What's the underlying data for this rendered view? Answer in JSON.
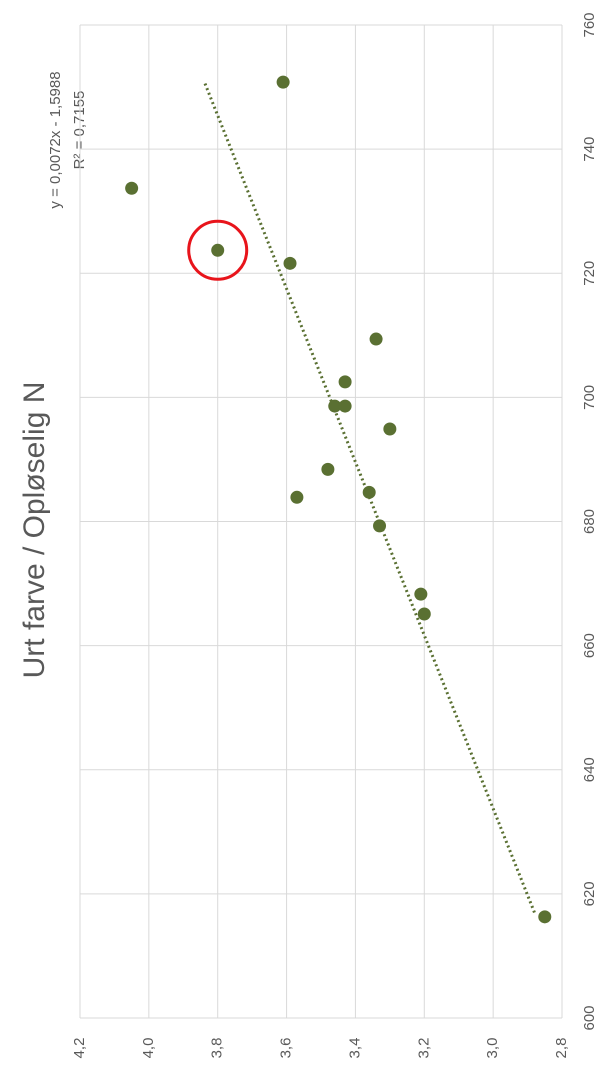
{
  "chart_data": {
    "type": "scatter",
    "title": "Urt farve / Opløselig N",
    "series": [
      {
        "name": "Urt farve / Opløselig N",
        "color": "#5a7032",
        "x": [
          750.8,
          733.7,
          723.7,
          721.6,
          709.4,
          702.5,
          698.6,
          698.6,
          694.9,
          688.4,
          683.9,
          684.7,
          679.3,
          668.3,
          665.1,
          616.3
        ],
        "values": [
          3.61,
          4.05,
          3.8,
          3.59,
          3.34,
          3.43,
          3.46,
          3.43,
          3.3,
          3.48,
          3.57,
          3.36,
          3.33,
          3.21,
          3.2,
          2.85
        ]
      }
    ],
    "trendline": {
      "equation": "y = 0,0072x - 1,5988",
      "r_squared": "R² = 0,7155",
      "x": [
        617,
        751
      ],
      "values": [
        2.88,
        3.84
      ]
    },
    "xlim": [
      600,
      760
    ],
    "xticks": [
      600,
      620,
      640,
      660,
      680,
      700,
      720,
      740,
      760
    ],
    "ylim": [
      2.8,
      4.2
    ],
    "yticks": [
      {
        "value": 2.8,
        "label": "2,8"
      },
      {
        "value": 3.0,
        "label": "3,0"
      },
      {
        "value": 3.2,
        "label": "3,2"
      },
      {
        "value": 3.4,
        "label": "3,4"
      },
      {
        "value": 3.6,
        "label": "3,6"
      },
      {
        "value": 3.8,
        "label": "3,8"
      },
      {
        "value": 4.0,
        "label": "4,0"
      },
      {
        "value": 4.2,
        "label": "4,2"
      }
    ],
    "grid": true
  }
}
